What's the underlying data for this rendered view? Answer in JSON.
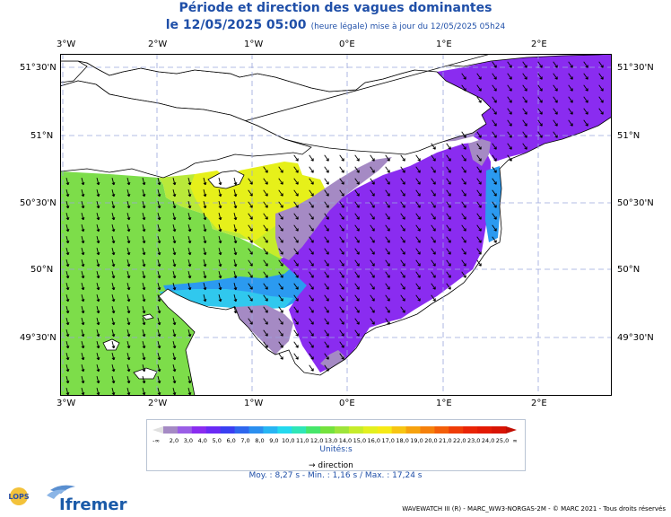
{
  "title": "Période et direction des vagues dominantes",
  "date_line": "le 12/05/2025 05:00",
  "date_sub": "(heure légale) mise à jour du 12/05/2025 05h24",
  "lon_labels": [
    "3°W",
    "2°W",
    "1°W",
    "0°E",
    "1°E",
    "2°E"
  ],
  "lat_labels_left": [
    "51°30'N",
    "51°N",
    "50°30'N",
    "50°N",
    "49°30'N"
  ],
  "lat_labels_right": [
    "51°30'N",
    "51°N",
    "50°30'N",
    "50°N",
    "49°30'N"
  ],
  "legend": {
    "min_label": "-∞",
    "max_label": "∞",
    "ticks": [
      "2,0",
      "3,0",
      "4,0",
      "5,0",
      "6,0",
      "7,0",
      "8,0",
      "9,0",
      "10,0",
      "11,0",
      "12,0",
      "13,0",
      "14,0",
      "15,0",
      "16,0",
      "17,0",
      "18,0",
      "19,0",
      "20,0",
      "21,0",
      "22,0",
      "23,0",
      "24,0",
      "25,0"
    ],
    "colors": [
      "#a58ac4",
      "#9a5ee6",
      "#8a2cf0",
      "#6a2af5",
      "#3a3ff2",
      "#2f67ee",
      "#2b8fef",
      "#27b5f3",
      "#23d9ee",
      "#2fe6b6",
      "#46e66a",
      "#74e23d",
      "#9ee43a",
      "#c6ec2b",
      "#e3f01f",
      "#f6ea16",
      "#f7c512",
      "#f6a20e",
      "#f5800b",
      "#f35e09",
      "#ef3c07",
      "#e92405",
      "#e31a04",
      "#d81404"
    ],
    "unit": "Unités:s",
    "direction_label": "direction"
  },
  "stats": "Moy. : 8,27 s   -   Min. : 1,16 s / Max. : 17,24 s",
  "footer": "WAVEWATCH III (R) - MARC_WW3-NORGAS-2M - © MARC 2021 - Tous droits réservés",
  "logos": {
    "lops": "LOPS",
    "ifremer": "Ifremer"
  },
  "colors": {
    "title": "#1f4fa8",
    "land": "#ffffff",
    "grid": "#9aa6dd"
  }
}
